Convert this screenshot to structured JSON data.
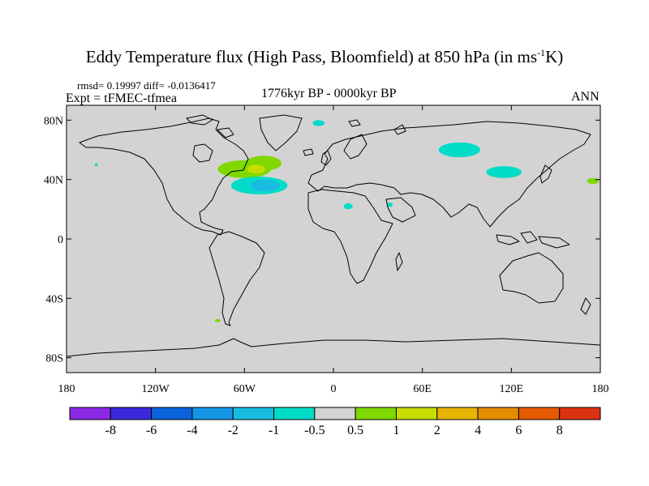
{
  "title": {
    "main": "Eddy Temperature flux (High Pass, Bloomfield) at 850 hPa (in ms",
    "sup": "-1",
    "tail": "K)"
  },
  "stats": "rmsd= 0.19997 diff= -0.0136417",
  "experiment": "Expt = tFMEC-tfmea",
  "period": "1776kyr BP - 0000kyr BP",
  "season": "ANN",
  "map": {
    "background_color": "#d3d3d3",
    "coastline_color": "#000000",
    "lon_range": [
      -180,
      180
    ],
    "lat_range": [
      -90,
      90
    ],
    "lon_ticks": [
      {
        "value": -180,
        "label": "180"
      },
      {
        "value": -120,
        "label": "120W"
      },
      {
        "value": -60,
        "label": "60W"
      },
      {
        "value": 0,
        "label": "0"
      },
      {
        "value": 60,
        "label": "60E"
      },
      {
        "value": 120,
        "label": "120E"
      },
      {
        "value": 180,
        "label": "180"
      }
    ],
    "lat_ticks": [
      {
        "value": 80,
        "label": "80N"
      },
      {
        "value": 40,
        "label": "40N"
      },
      {
        "value": 0,
        "label": "0"
      },
      {
        "value": -40,
        "label": "40S"
      },
      {
        "value": -80,
        "label": "80S"
      }
    ],
    "anomalies": [
      {
        "lon": -60,
        "lat": 47,
        "rx": 18,
        "ry": 6,
        "color": "#7fd900"
      },
      {
        "lon": -47,
        "lat": 51,
        "rx": 12,
        "ry": 5,
        "color": "#7fd900"
      },
      {
        "lon": -52,
        "lat": 47,
        "rx": 6,
        "ry": 3,
        "color": "#c8dc00"
      },
      {
        "lon": -50,
        "lat": 36,
        "rx": 19,
        "ry": 6,
        "color": "#00dcc8"
      },
      {
        "lon": -46,
        "lat": 36,
        "rx": 10,
        "ry": 4,
        "color": "#18bce0"
      },
      {
        "lon": 85,
        "lat": 60,
        "rx": 14,
        "ry": 5,
        "color": "#00dcc8"
      },
      {
        "lon": 115,
        "lat": 45,
        "rx": 12,
        "ry": 4,
        "color": "#00dcc8"
      },
      {
        "lon": -10,
        "lat": 78,
        "rx": 4,
        "ry": 2,
        "color": "#00dcc8"
      },
      {
        "lon": 10,
        "lat": 22,
        "rx": 3,
        "ry": 2,
        "color": "#00dcc8"
      },
      {
        "lon": 38,
        "lat": 23,
        "rx": 2,
        "ry": 1.5,
        "color": "#00dcc8"
      },
      {
        "lon": 175,
        "lat": 39,
        "rx": 4,
        "ry": 2,
        "color": "#7fd900"
      },
      {
        "lon": -78,
        "lat": -55,
        "rx": 2,
        "ry": 1,
        "color": "#7fd900"
      },
      {
        "lon": -160,
        "lat": 50,
        "rx": 1,
        "ry": 1,
        "color": "#00dcc8"
      }
    ]
  },
  "colorbar": {
    "colors": [
      "#8c28e6",
      "#3c28dc",
      "#0a64dc",
      "#1496e6",
      "#18bce0",
      "#00dcc8",
      "#d3d3d3",
      "#7fd900",
      "#c8dc00",
      "#e6b400",
      "#e68c00",
      "#e65a00",
      "#dc3214"
    ],
    "labels": [
      "-8",
      "-6",
      "-4",
      "-2",
      "-1",
      "-0.5",
      "0.5",
      "1",
      "2",
      "4",
      "6",
      "8"
    ]
  }
}
